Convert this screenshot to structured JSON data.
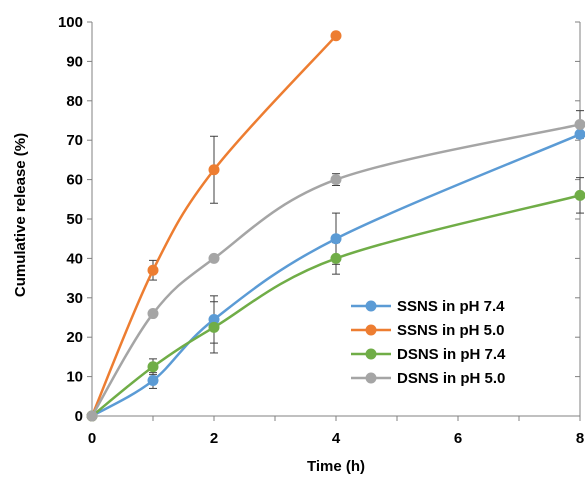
{
  "chart_data": {
    "type": "line",
    "title": "",
    "xlabel": "Time (h)",
    "ylabel": "Cumulative release (%)",
    "xlim": [
      0,
      8
    ],
    "ylim": [
      0,
      100
    ],
    "xticks": [
      0,
      2,
      4,
      6,
      8
    ],
    "yticks": [
      0,
      10,
      20,
      30,
      40,
      50,
      60,
      70,
      80,
      90,
      100
    ],
    "xtick_labels": [
      "0",
      "2",
      "4",
      "6",
      "8"
    ],
    "ytick_labels": [
      "0",
      "10",
      "20",
      "30",
      "40",
      "50",
      "60",
      "70",
      "80",
      "90",
      "100"
    ],
    "grid": false,
    "legend_position": "lower-right",
    "series": [
      {
        "name": "SSNS in pH 7.4",
        "color": "#5b9bd5",
        "x": [
          0,
          1,
          2,
          4,
          8
        ],
        "y": [
          0,
          9,
          24.5,
          45,
          71.5
        ],
        "error": [
          0,
          2,
          6,
          6.5,
          0
        ]
      },
      {
        "name": "SSNS in pH 5.0",
        "color": "#ed7d31",
        "x": [
          0,
          1,
          2,
          4
        ],
        "y": [
          0,
          37,
          62.5,
          96.5
        ],
        "error": [
          0,
          2.5,
          8.5,
          0
        ]
      },
      {
        "name": "DSNS in pH 7.4",
        "color": "#70ad47",
        "x": [
          0,
          1,
          2,
          4,
          8
        ],
        "y": [
          0,
          12.5,
          22.5,
          40,
          56
        ],
        "error": [
          0,
          2,
          6.5,
          4,
          4.5
        ]
      },
      {
        "name": "DSNS in pH 5.0",
        "color": "#a5a5a5",
        "x": [
          0,
          1,
          2,
          4,
          8
        ],
        "y": [
          0,
          26,
          40,
          60,
          74
        ],
        "error": [
          0,
          0,
          0,
          1.5,
          3.5
        ]
      }
    ]
  }
}
